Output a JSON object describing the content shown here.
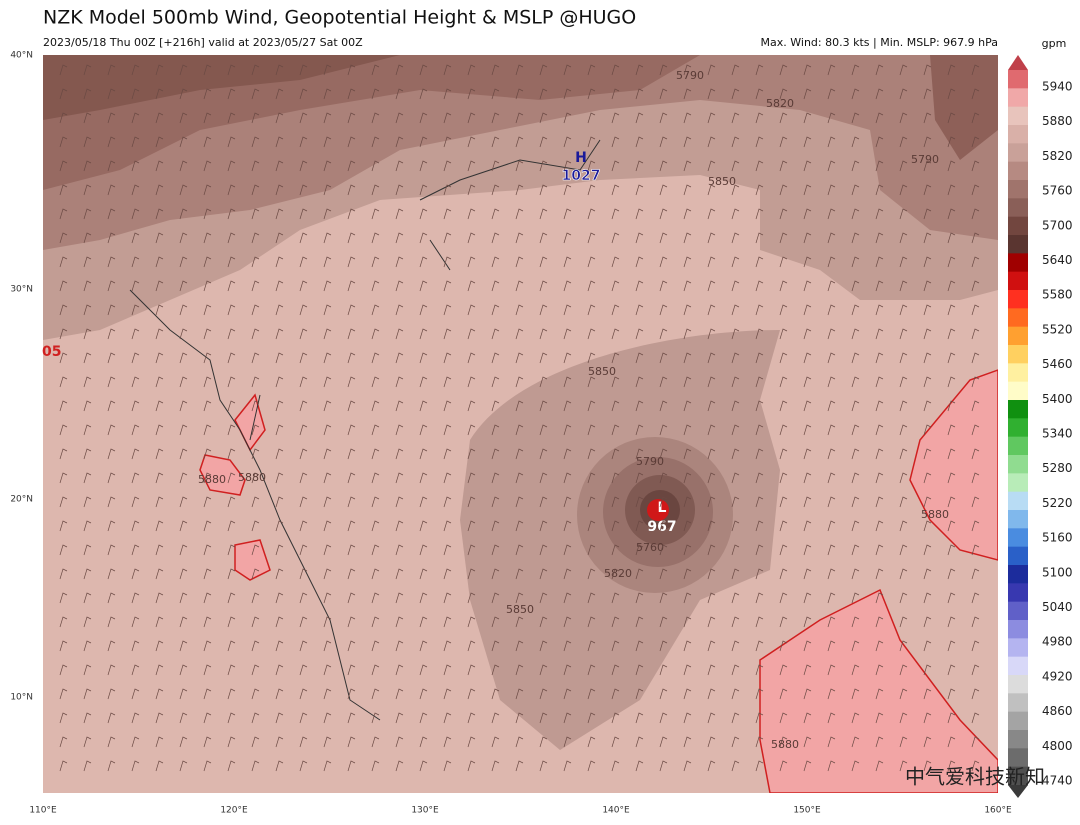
{
  "header": {
    "title": "NZK Model 500mb Wind, Geopotential Height & MSLP @HUGO",
    "left": "2023/05/18 Thu 00Z [+216h] valid at 2023/05/27 Sat 00Z",
    "right": "Max. Wind: 80.3 kts | Min. MSLP: 967.9 hPa"
  },
  "map": {
    "lat_labels": [
      "40°N",
      "30°N",
      "20°N",
      "10°N"
    ],
    "lon_labels": [
      "110°E",
      "120°E",
      "130°E",
      "140°E",
      "150°E",
      "160°E"
    ],
    "contour_labels": [
      5790,
      5820,
      5790,
      5850,
      5850,
      5790,
      5760,
      5820,
      5850,
      5880,
      5880,
      5880,
      5880
    ],
    "high": {
      "letter": "H",
      "value": 1027
    },
    "low": {
      "letter": "L",
      "value": 967
    },
    "edge_label": "05"
  },
  "colorbar": {
    "unit": "gpm",
    "levels": [
      5940,
      5880,
      5820,
      5760,
      5700,
      5640,
      5580,
      5520,
      5460,
      5400,
      5340,
      5280,
      5220,
      5160,
      5100,
      5040,
      4980,
      4920,
      4860,
      4800,
      4740
    ]
  },
  "watermark": "中气爱科技新知"
}
